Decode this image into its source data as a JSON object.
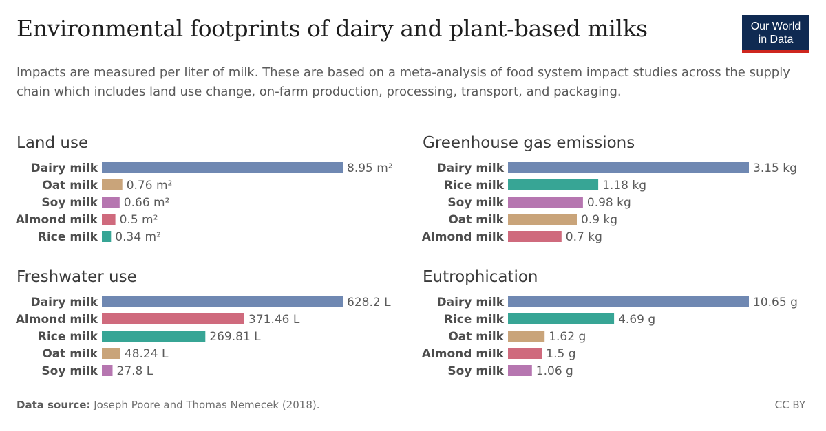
{
  "header": {
    "title": "Environmental footprints of dairy and plant-based milks",
    "subtitle": "Impacts are measured per liter of milk. These are based on a meta-analysis of food system impact studies across the supply chain which includes land use change, on-farm production, processing, transport, and packaging.",
    "logo_line1": "Our World",
    "logo_line2": "in Data"
  },
  "footer": {
    "source_label": "Data source:",
    "source_text": "Joseph Poore and Thomas Nemecek (2018).",
    "license": "CC BY"
  },
  "colors": {
    "Dairy milk": "#6f88b2",
    "Oat milk": "#c9a47a",
    "Soy milk": "#b676b0",
    "Almond milk": "#cf6a7d",
    "Rice milk": "#37a595"
  },
  "chart_data": [
    {
      "type": "bar",
      "orientation": "horizontal",
      "title": "Land use",
      "unit": "m²",
      "categories": [
        "Dairy milk",
        "Oat milk",
        "Soy milk",
        "Almond milk",
        "Rice milk"
      ],
      "values": [
        8.95,
        0.76,
        0.66,
        0.5,
        0.34
      ],
      "labels": [
        "8.95 m²",
        "0.76 m²",
        "0.66 m²",
        "0.5 m²",
        "0.34 m²"
      ]
    },
    {
      "type": "bar",
      "orientation": "horizontal",
      "title": "Greenhouse gas emissions",
      "unit": "kg",
      "categories": [
        "Dairy milk",
        "Rice milk",
        "Soy milk",
        "Oat milk",
        "Almond milk"
      ],
      "values": [
        3.15,
        1.18,
        0.98,
        0.9,
        0.7
      ],
      "labels": [
        "3.15 kg",
        "1.18 kg",
        "0.98 kg",
        "0.9 kg",
        "0.7 kg"
      ]
    },
    {
      "type": "bar",
      "orientation": "horizontal",
      "title": "Freshwater use",
      "unit": "L",
      "categories": [
        "Dairy milk",
        "Almond milk",
        "Rice milk",
        "Oat milk",
        "Soy milk"
      ],
      "values": [
        628.2,
        371.46,
        269.81,
        48.24,
        27.8
      ],
      "labels": [
        "628.2 L",
        "371.46 L",
        "269.81 L",
        "48.24 L",
        "27.8 L"
      ]
    },
    {
      "type": "bar",
      "orientation": "horizontal",
      "title": "Eutrophication",
      "unit": "g",
      "categories": [
        "Dairy milk",
        "Rice milk",
        "Oat milk",
        "Almond milk",
        "Soy milk"
      ],
      "values": [
        10.65,
        4.69,
        1.62,
        1.5,
        1.06
      ],
      "labels": [
        "10.65 g",
        "4.69 g",
        "1.62 g",
        "1.5 g",
        "1.06 g"
      ]
    }
  ]
}
